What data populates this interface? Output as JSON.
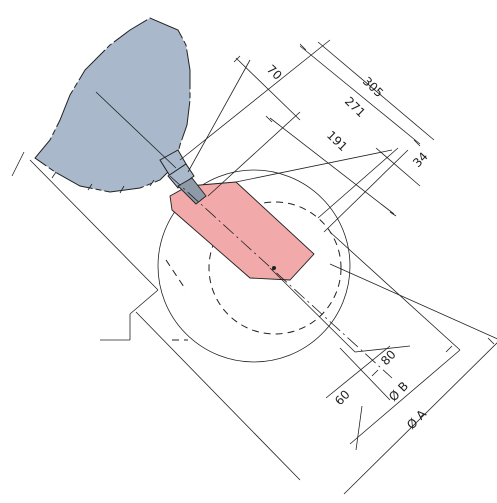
{
  "diagram": {
    "dimensions": {
      "d305": "305",
      "d271": "271",
      "d191": "191",
      "d70": "70",
      "d34": "34",
      "d80": "80",
      "d60": "60",
      "diam_b": "Ø B",
      "diam_a": "Ø A"
    },
    "colors": {
      "robot_body": "#a9b8cb",
      "tool": "#f2a9a9",
      "line": "#222222"
    }
  }
}
